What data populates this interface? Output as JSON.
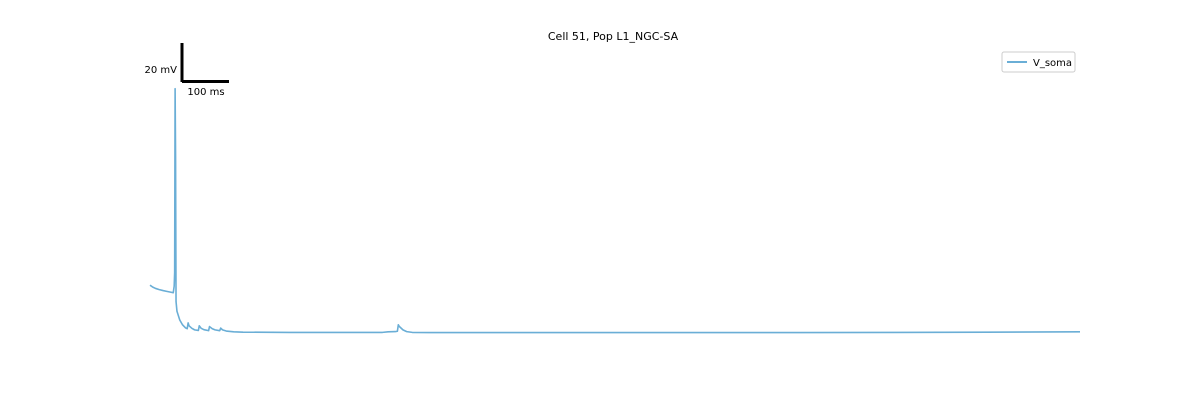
{
  "chart_data": {
    "type": "line",
    "title": "Cell 51, Pop L1_NGC-SA",
    "xlabel": "",
    "ylabel": "",
    "xlim": [
      0,
      1000
    ],
    "ylim": [
      -95,
      60
    ],
    "grid": false,
    "axes_visible": false,
    "legend_placement": "top-right",
    "scalebar": {
      "y_value": 20,
      "y_label": "20 mV",
      "x_value": 100,
      "x_label": "100 ms"
    },
    "series": [
      {
        "name": "V_soma",
        "color": "#6aaed6",
        "points": [
          [
            0,
            -61.5
          ],
          [
            3,
            -62.5
          ],
          [
            6,
            -63.2
          ],
          [
            10,
            -63.8
          ],
          [
            14,
            -64.3
          ],
          [
            18,
            -64.7
          ],
          [
            22,
            -65.1
          ],
          [
            25,
            -65.4
          ],
          [
            26,
            -62.0
          ],
          [
            26.5,
            -55.0
          ],
          [
            27,
            40.0
          ],
          [
            27.5,
            5.0
          ],
          [
            28,
            -70.0
          ],
          [
            29,
            -75.0
          ],
          [
            30,
            -76.5
          ],
          [
            32,
            -79.5
          ],
          [
            35,
            -82.0
          ],
          [
            38,
            -83.5
          ],
          [
            40,
            -84.0
          ],
          [
            41,
            -81.0
          ],
          [
            42,
            -82.5
          ],
          [
            45,
            -83.8
          ],
          [
            48,
            -84.6
          ],
          [
            52,
            -84.9
          ],
          [
            53,
            -82.5
          ],
          [
            55,
            -83.8
          ],
          [
            58,
            -84.5
          ],
          [
            63,
            -85.0
          ],
          [
            64,
            -82.9
          ],
          [
            67,
            -84.0
          ],
          [
            70,
            -84.6
          ],
          [
            75,
            -85.0
          ],
          [
            76,
            -83.7
          ],
          [
            78,
            -84.6
          ],
          [
            82,
            -85.2
          ],
          [
            90,
            -85.6
          ],
          [
            100,
            -85.8
          ],
          [
            150,
            -85.9
          ],
          [
            200,
            -85.9
          ],
          [
            250,
            -85.9
          ],
          [
            256,
            -85.6
          ],
          [
            264,
            -85.5
          ],
          [
            266,
            -85.3
          ],
          [
            267,
            -82.0
          ],
          [
            268,
            -82.8
          ],
          [
            272,
            -84.6
          ],
          [
            276,
            -85.5
          ],
          [
            282,
            -85.9
          ],
          [
            300,
            -86.0
          ],
          [
            400,
            -86.0
          ],
          [
            500,
            -86.0
          ],
          [
            600,
            -86.0
          ],
          [
            700,
            -86.0
          ],
          [
            800,
            -85.9
          ],
          [
            900,
            -85.8
          ],
          [
            1000,
            -85.6
          ]
        ]
      }
    ]
  }
}
